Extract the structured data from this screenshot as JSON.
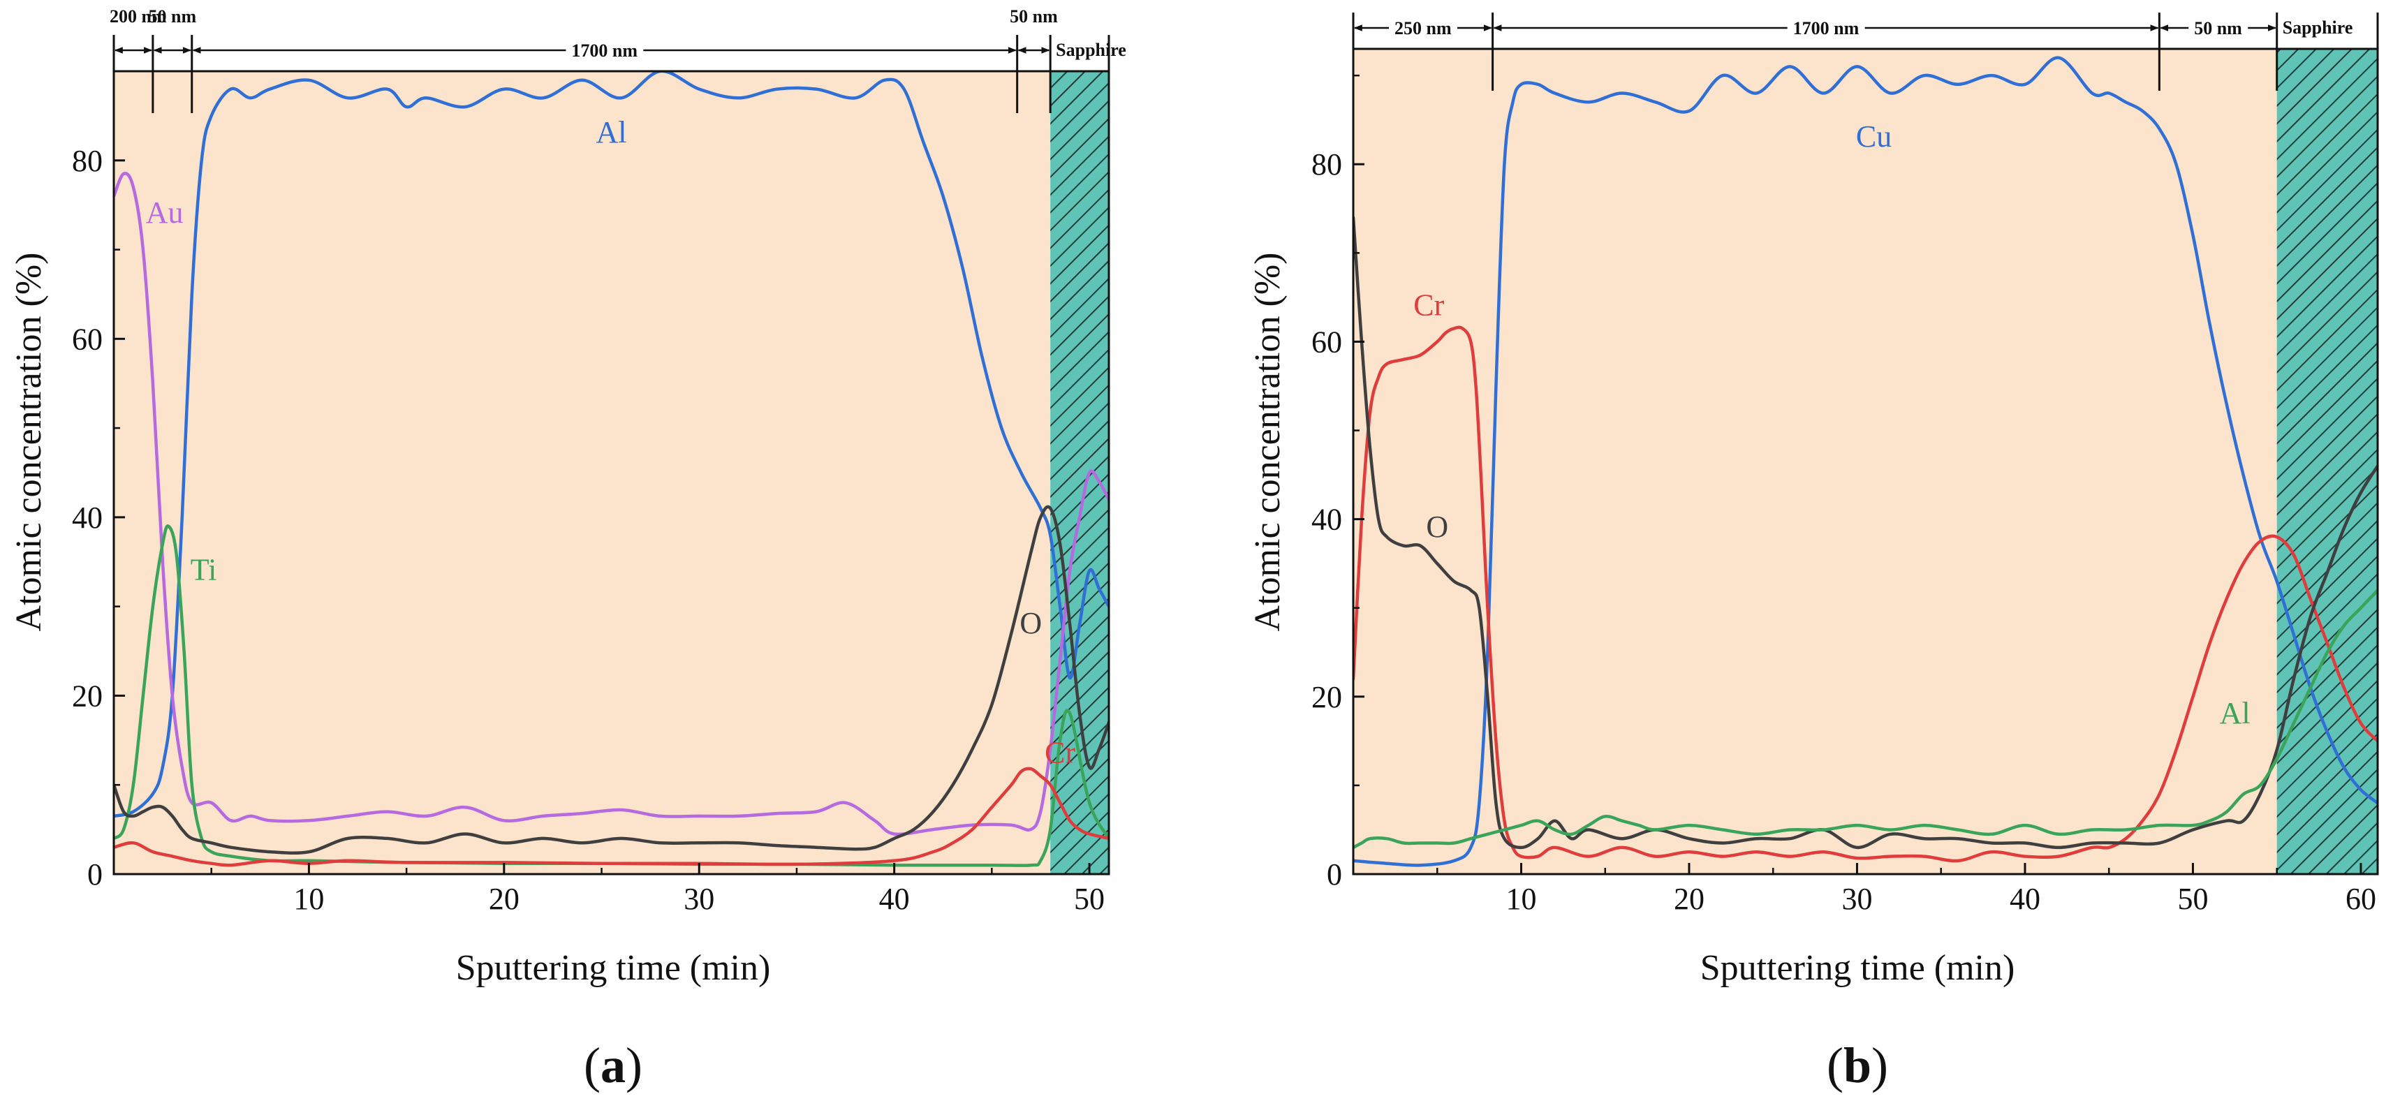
{
  "chart_data": [
    {
      "type": "line",
      "panel": "(a)",
      "panel_letter": "a",
      "xlabel": "Sputtering time (min)",
      "ylabel": "Atomic concentration (%)",
      "xlim": [
        0,
        51
      ],
      "ylim": [
        0,
        90
      ],
      "xticks": [
        10,
        20,
        30,
        40,
        50
      ],
      "yticks": [
        0,
        20,
        40,
        60,
        80
      ],
      "substrate_start": 48,
      "layers": [
        {
          "label": "200 nm",
          "from": 0,
          "to": 2
        },
        {
          "label": "50 nm",
          "from": 2,
          "to": 4
        },
        {
          "label": "1700 nm",
          "from": 4,
          "to": 46.3
        },
        {
          "label": "50 nm",
          "from": 46.3,
          "to": 48
        },
        {
          "label": "Sapphire",
          "from": 48,
          "to": 51
        }
      ],
      "series": [
        {
          "name": "Al",
          "color": "#2f6fd6",
          "label_at": [
            25.5,
            82
          ],
          "x": [
            0,
            1,
            2,
            2.5,
            3,
            3.5,
            4,
            4.5,
            5,
            6,
            7,
            8,
            10,
            12,
            14,
            15,
            16,
            18,
            20,
            22,
            24,
            26,
            28,
            30,
            32,
            34,
            36,
            38,
            39.5,
            40.5,
            41.5,
            42.5,
            43.5,
            44.5,
            45.5,
            46.5,
            47.5,
            48,
            48.5,
            49,
            49.5,
            50,
            50.5,
            51
          ],
          "y": [
            6.5,
            7,
            9,
            12,
            20,
            40,
            65,
            80,
            85,
            88,
            87,
            88,
            89,
            87,
            88,
            86,
            87,
            86,
            88,
            87,
            89,
            87,
            90,
            88,
            87,
            88,
            88,
            87,
            89,
            88,
            82,
            76,
            68,
            58,
            50,
            45,
            41,
            38,
            30,
            22,
            28,
            34,
            32,
            30
          ]
        },
        {
          "name": "Au",
          "color": "#b66ae0",
          "label_at": [
            2.6,
            73
          ],
          "x": [
            0,
            0.5,
            1,
            1.5,
            2,
            2.5,
            3,
            3.5,
            4,
            5,
            6,
            7,
            8,
            10,
            12,
            14,
            16,
            18,
            20,
            22,
            24,
            26,
            28,
            30,
            32,
            34,
            36,
            37.5,
            39,
            40,
            42,
            44,
            46,
            47,
            47.5,
            48,
            48.5,
            49,
            49.5,
            50,
            50.5,
            51
          ],
          "y": [
            76,
            78.5,
            77,
            70,
            55,
            35,
            20,
            12,
            8,
            8,
            6,
            6.5,
            6,
            6,
            6.5,
            7,
            6.5,
            7.5,
            6,
            6.5,
            6.8,
            7.2,
            6.5,
            6.5,
            6.5,
            6.8,
            7,
            8,
            6,
            4.5,
            5,
            5.5,
            5.5,
            5,
            7,
            14,
            24,
            34,
            40,
            45,
            44,
            42
          ]
        },
        {
          "name": "Ti",
          "color": "#3aa55a",
          "label_at": [
            4.6,
            33
          ],
          "x": [
            0,
            0.5,
            1,
            1.5,
            2,
            2.5,
            2.8,
            3.2,
            3.6,
            4,
            4.5,
            5,
            6,
            8,
            10,
            15,
            20,
            25,
            30,
            35,
            40,
            45,
            47,
            47.5,
            48,
            48.5,
            49,
            50,
            51
          ],
          "y": [
            4,
            5,
            10,
            20,
            30,
            37,
            39,
            36,
            25,
            10,
            4,
            2.5,
            2,
            1.5,
            1.5,
            1.3,
            1.2,
            1.2,
            1.1,
            1.1,
            1,
            1,
            1,
            1.5,
            5,
            15,
            18,
            8,
            4
          ]
        },
        {
          "name": "O",
          "color": "#3f3f3f",
          "label_at": [
            47,
            27
          ],
          "x": [
            0,
            0.5,
            1,
            1.5,
            2,
            2.5,
            3,
            3.5,
            4,
            5,
            6,
            8,
            10,
            12,
            14,
            16,
            18,
            20,
            22,
            24,
            26,
            28,
            30,
            32,
            34,
            36,
            38,
            39,
            40,
            41,
            42,
            43,
            44,
            45,
            46,
            47,
            47.5,
            48,
            48.5,
            49,
            49.5,
            50,
            50.5,
            51
          ],
          "y": [
            10,
            7,
            6.5,
            7,
            7.5,
            7.5,
            6.5,
            5,
            4,
            3.5,
            3,
            2.5,
            2.5,
            4,
            4,
            3.5,
            4.5,
            3.5,
            4,
            3.5,
            4,
            3.5,
            3.5,
            3.5,
            3.2,
            3,
            2.8,
            3,
            4,
            5,
            7,
            10,
            14,
            19,
            27,
            36,
            40,
            41,
            37,
            28,
            18,
            12,
            14,
            17
          ]
        },
        {
          "name": "Cr",
          "color": "#e03c3c",
          "label_at": [
            48.5,
            12.5
          ],
          "x": [
            0,
            1,
            2,
            3,
            4,
            5,
            6,
            8,
            10,
            12,
            15,
            20,
            25,
            30,
            35,
            40,
            42,
            43,
            44,
            45,
            46,
            46.5,
            47,
            47.5,
            48,
            48.5,
            49,
            49.5,
            50,
            51
          ],
          "y": [
            3,
            3.5,
            2.5,
            2,
            1.5,
            1.2,
            1,
            1.5,
            1.2,
            1.5,
            1.3,
            1.3,
            1.2,
            1.2,
            1.1,
            1.5,
            2.5,
            3.5,
            5,
            7.5,
            10,
            11.5,
            11.8,
            11,
            10,
            8,
            6,
            5,
            4.5,
            4
          ]
        }
      ]
    },
    {
      "type": "line",
      "panel": "(b)",
      "panel_letter": "b",
      "xlabel": "Sputtering time (min)",
      "ylabel": "Atomic concentration (%)",
      "xlim": [
        0,
        61
      ],
      "ylim": [
        0,
        93
      ],
      "xticks": [
        10,
        20,
        30,
        40,
        50,
        60
      ],
      "yticks": [
        0,
        20,
        40,
        60,
        80
      ],
      "substrate_start": 55,
      "layers": [
        {
          "label": "250 nm",
          "from": 0,
          "to": 8.3
        },
        {
          "label": "1700 nm",
          "from": 8.3,
          "to": 48
        },
        {
          "label": "50 nm",
          "from": 48,
          "to": 55
        },
        {
          "label": "Sapphire",
          "from": 55,
          "to": 61
        }
      ],
      "series": [
        {
          "name": "Cu",
          "color": "#2f6fd6",
          "label_at": [
            31,
            82
          ],
          "x": [
            0,
            2,
            4,
            6,
            7,
            7.5,
            8,
            8.5,
            9,
            9.5,
            10,
            11,
            12,
            14,
            16,
            18,
            20,
            22,
            24,
            26,
            28,
            30,
            32,
            34,
            36,
            38,
            40,
            42,
            44,
            45,
            46,
            47,
            48,
            49,
            50,
            51,
            52,
            53,
            54,
            55,
            56,
            57,
            58,
            59,
            60,
            61
          ],
          "y": [
            1.5,
            1.2,
            1,
            1.5,
            3,
            8,
            25,
            55,
            80,
            87,
            89,
            89,
            88,
            87,
            88,
            87,
            86,
            90,
            88,
            91,
            88,
            91,
            88,
            90,
            89,
            90,
            89,
            92,
            88,
            88,
            87,
            86,
            84,
            80,
            72,
            62,
            53,
            45,
            38,
            33,
            27,
            21,
            16,
            12,
            9.5,
            8
          ]
        },
        {
          "name": "Cr",
          "color": "#e03c3c",
          "label_at": [
            4.5,
            63
          ],
          "x": [
            0,
            0.5,
            1,
            1.5,
            2,
            3,
            4,
            5,
            5.5,
            6,
            6.5,
            7,
            7.3,
            7.6,
            8,
            8.5,
            9,
            9.5,
            10,
            11,
            12,
            14,
            16,
            18,
            20,
            22,
            24,
            26,
            28,
            30,
            32,
            34,
            36,
            38,
            40,
            42,
            44,
            45,
            46,
            47,
            48,
            49,
            50,
            51,
            52,
            53,
            54,
            55,
            56,
            57,
            58,
            59,
            60,
            61
          ],
          "y": [
            22,
            40,
            52,
            56,
            57.5,
            58,
            58.5,
            60,
            61,
            61.5,
            61.5,
            60,
            55,
            45,
            30,
            15,
            6,
            3,
            2,
            2,
            3,
            2,
            3,
            2,
            2.5,
            2,
            2.5,
            2,
            2.5,
            1.8,
            2,
            2,
            1.5,
            2.5,
            2,
            2,
            3,
            3,
            4,
            6,
            9,
            14,
            20,
            26,
            31,
            35,
            37.5,
            38,
            36,
            31,
            26,
            21,
            17,
            15
          ]
        },
        {
          "name": "O",
          "color": "#3f3f3f",
          "label_at": [
            5,
            38
          ],
          "x": [
            0,
            0.5,
            1,
            1.5,
            2,
            3,
            4,
            5,
            6,
            7,
            7.5,
            8,
            8.5,
            9,
            10,
            11,
            12,
            13,
            14,
            16,
            18,
            20,
            22,
            24,
            26,
            28,
            30,
            32,
            34,
            36,
            38,
            40,
            42,
            44,
            46,
            48,
            50,
            52,
            53,
            54,
            55,
            56,
            57,
            58,
            59,
            60,
            61
          ],
          "y": [
            74,
            60,
            48,
            40,
            38,
            37,
            37,
            35,
            33,
            32,
            30,
            20,
            8,
            4,
            3,
            4,
            6,
            4,
            5,
            4,
            5,
            4,
            3.5,
            4,
            4,
            5,
            3,
            4.5,
            4,
            4,
            3.5,
            3.5,
            3,
            3.5,
            3.5,
            3.5,
            5,
            6,
            6,
            9,
            14,
            22,
            29,
            34,
            39,
            43,
            46
          ]
        },
        {
          "name": "Al",
          "color": "#3aa55a",
          "label_at": [
            52.5,
            17
          ],
          "x": [
            0,
            0.5,
            1,
            2,
            3,
            4,
            5,
            6,
            7,
            8,
            9,
            10,
            11,
            12,
            13,
            14,
            15,
            16,
            17,
            18,
            20,
            22,
            24,
            26,
            28,
            30,
            32,
            34,
            36,
            38,
            40,
            42,
            44,
            46,
            48,
            50,
            51,
            52,
            53,
            54,
            55,
            56,
            57,
            58,
            59,
            60,
            61
          ],
          "y": [
            3,
            3.5,
            4,
            4,
            3.5,
            3.5,
            3.5,
            3.5,
            4,
            4.5,
            5,
            5.5,
            6,
            5,
            4.5,
            5.5,
            6.5,
            6,
            5.5,
            5,
            5.5,
            5,
            4.5,
            5,
            5,
            5.5,
            5,
            5.5,
            5,
            4.5,
            5.5,
            4.5,
            5,
            5,
            5.5,
            5.5,
            6,
            7,
            9,
            10,
            13,
            17,
            21,
            25,
            28,
            30,
            32
          ]
        }
      ]
    }
  ]
}
